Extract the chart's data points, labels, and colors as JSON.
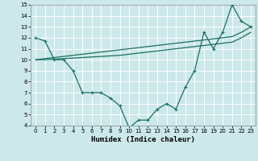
{
  "xlabel": "Humidex (Indice chaleur)",
  "bg_color": "#cce8ea",
  "line_color": "#1a7060",
  "grid_color": "#ffffff",
  "xlim": [
    -0.5,
    23.5
  ],
  "ylim": [
    4,
    15
  ],
  "xticks": [
    0,
    1,
    2,
    3,
    4,
    5,
    6,
    7,
    8,
    9,
    10,
    11,
    12,
    13,
    14,
    15,
    16,
    17,
    18,
    19,
    20,
    21,
    22,
    23
  ],
  "yticks": [
    4,
    5,
    6,
    7,
    8,
    9,
    10,
    11,
    12,
    13,
    14,
    15
  ],
  "curve1_x": [
    0,
    1,
    2,
    3,
    4,
    5,
    6,
    7,
    8,
    9,
    10,
    11,
    12,
    13,
    14,
    15,
    16,
    17,
    18,
    19,
    20,
    21,
    22,
    23
  ],
  "curve1_y": [
    12,
    11.7,
    10,
    10,
    9,
    7,
    7,
    7,
    6.5,
    5.8,
    3.8,
    4.5,
    4.5,
    5.5,
    6.0,
    5.5,
    7.5,
    9.0,
    12.5,
    11,
    12.5,
    15,
    13.5,
    13
  ],
  "curve2_x": [
    0,
    1,
    2,
    3,
    4,
    5,
    6,
    7,
    8,
    9,
    10,
    11,
    12,
    13,
    14,
    15,
    16,
    17,
    18,
    19,
    20,
    21,
    22,
    23
  ],
  "curve2_y": [
    10,
    10.1,
    10.2,
    10.3,
    10.4,
    10.5,
    10.6,
    10.7,
    10.8,
    10.9,
    11.0,
    11.1,
    11.2,
    11.3,
    11.4,
    11.5,
    11.6,
    11.7,
    11.8,
    11.9,
    12.0,
    12.1,
    12.5,
    13.0
  ],
  "curve3_x": [
    0,
    1,
    2,
    3,
    4,
    5,
    6,
    7,
    8,
    9,
    10,
    11,
    12,
    13,
    14,
    15,
    16,
    17,
    18,
    19,
    20,
    21,
    22,
    23
  ],
  "curve3_y": [
    10,
    10.0,
    10.05,
    10.1,
    10.15,
    10.2,
    10.25,
    10.3,
    10.35,
    10.4,
    10.5,
    10.6,
    10.7,
    10.8,
    10.9,
    11.0,
    11.1,
    11.2,
    11.3,
    11.4,
    11.5,
    11.6,
    12.0,
    12.5
  ]
}
